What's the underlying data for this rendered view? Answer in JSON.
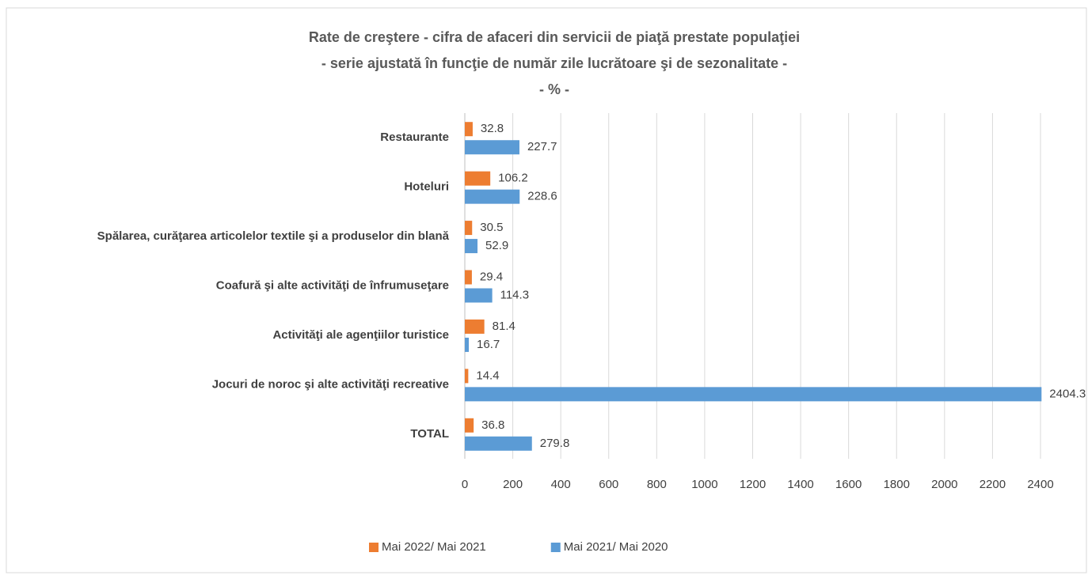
{
  "chart_data": {
    "type": "bar",
    "title": "Rate de creştere - cifra de afaceri din servicii de piaţă prestate populaţiei",
    "subtitle": "- serie ajustată în funcţie de număr zile lucrătoare şi de sezonalitate -",
    "unit_label": "- % -",
    "categories": [
      "Restaurante",
      "Hoteluri",
      "Spălarea, curăţarea articolelor textile şi a produselor din blană",
      "Coafură şi alte activităţi de înfrumuseţare",
      "Activităţi ale agenţiilor turistice",
      "Jocuri de noroc şi alte activităţi recreative",
      "TOTAL"
    ],
    "series": [
      {
        "name": "Mai 2022/ Mai 2021",
        "color": "#ed7d31",
        "values": [
          32.8,
          106.2,
          30.5,
          29.4,
          81.4,
          14.4,
          36.8
        ]
      },
      {
        "name": "Mai 2021/ Mai 2020",
        "color": "#5b9bd5",
        "values": [
          227.7,
          228.6,
          52.9,
          114.3,
          16.7,
          2404.3,
          279.8
        ]
      }
    ],
    "xlim": [
      0,
      2400
    ],
    "xticks": [
      0,
      200,
      400,
      600,
      800,
      1000,
      1200,
      1400,
      1600,
      1800,
      2000,
      2200,
      2400
    ],
    "grid": true,
    "legend": "bottom"
  }
}
